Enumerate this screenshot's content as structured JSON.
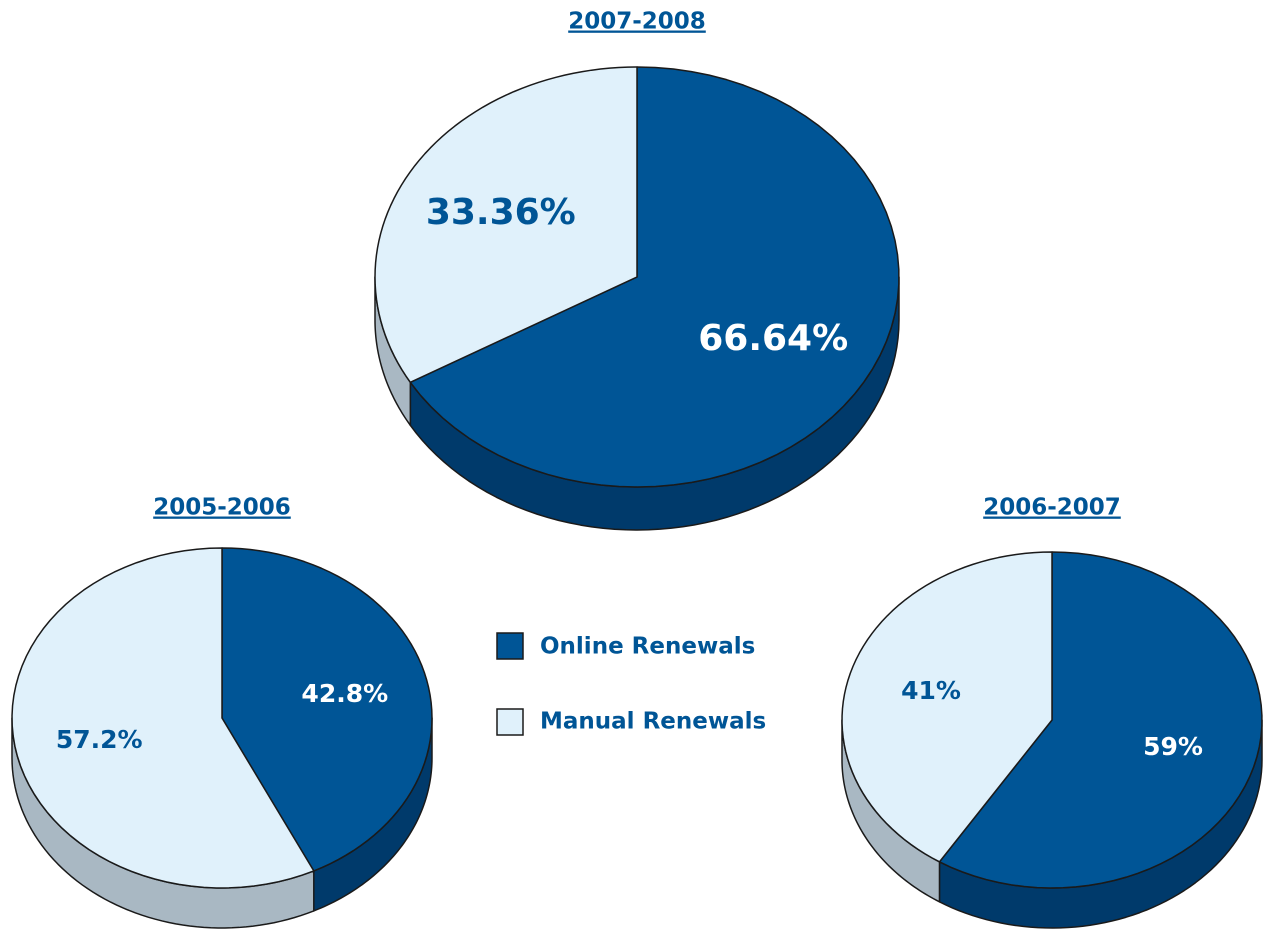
{
  "legend": {
    "names": [
      "Online Renewals",
      "Manual Renewals"
    ],
    "colors": [
      "#005596",
      "#e0f1fb"
    ]
  },
  "chart_data": [
    {
      "type": "pie",
      "title": "2007-2008",
      "values": [
        66.64,
        33.36
      ],
      "value_labels": [
        "66.64%",
        "33.36%"
      ]
    },
    {
      "type": "pie",
      "title": "2005-2006",
      "values": [
        42.8,
        57.2
      ],
      "value_labels": [
        "42.8%",
        "57.2%"
      ]
    },
    {
      "type": "pie",
      "title": "2006-2007",
      "values": [
        59,
        41
      ],
      "value_labels": [
        "59%",
        "41%"
      ]
    }
  ]
}
